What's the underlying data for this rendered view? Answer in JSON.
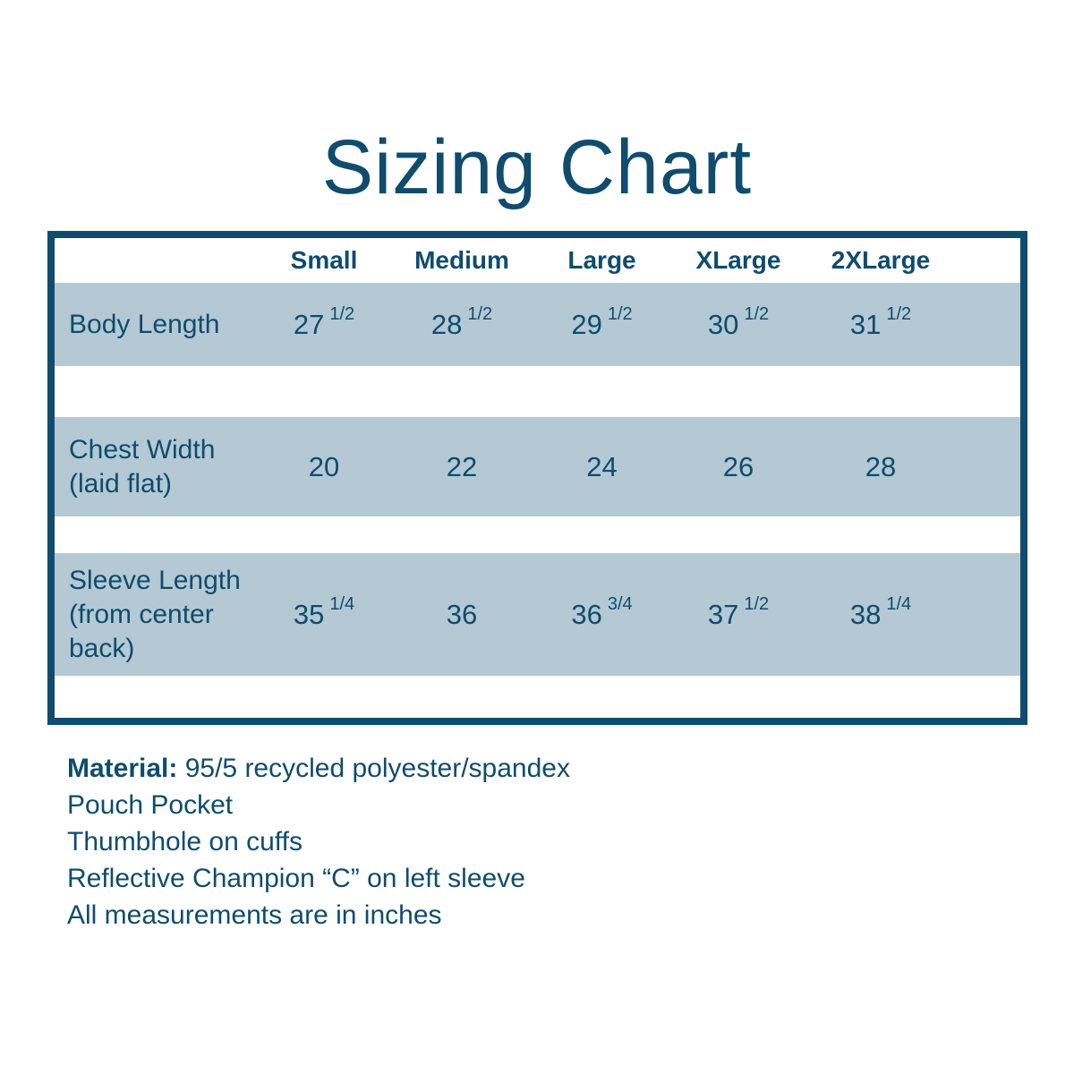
{
  "page": {
    "title": "Sizing Chart"
  },
  "colors": {
    "accent": "#0F4C6E",
    "row_band": "#B4C9D3",
    "background": "#FFFFFF"
  },
  "table": {
    "size_headers": [
      "Small",
      "Medium",
      "Large",
      "XLarge",
      "2XLarge"
    ],
    "rows": [
      {
        "label_lines": [
          "Body Length"
        ],
        "values": [
          {
            "whole": "27",
            "frac": "1/2"
          },
          {
            "whole": "28",
            "frac": "1/2"
          },
          {
            "whole": "29",
            "frac": "1/2"
          },
          {
            "whole": "30",
            "frac": "1/2"
          },
          {
            "whole": "31",
            "frac": "1/2"
          }
        ]
      },
      {
        "label_lines": [
          "Chest Width",
          "(laid flat)"
        ],
        "values": [
          {
            "whole": "20",
            "frac": ""
          },
          {
            "whole": "22",
            "frac": ""
          },
          {
            "whole": "24",
            "frac": ""
          },
          {
            "whole": "26",
            "frac": ""
          },
          {
            "whole": "28",
            "frac": ""
          }
        ]
      },
      {
        "label_lines": [
          "Sleeve Length",
          "(from center",
          "back)"
        ],
        "values": [
          {
            "whole": "35",
            "frac": "1/4"
          },
          {
            "whole": "36",
            "frac": ""
          },
          {
            "whole": "36",
            "frac": "3/4"
          },
          {
            "whole": "37",
            "frac": "1/2"
          },
          {
            "whole": "38",
            "frac": "1/4"
          }
        ]
      }
    ]
  },
  "notes": {
    "material_label": "Material:",
    "material_value": "95/5 recycled polyester/spandex",
    "lines": [
      "Pouch Pocket",
      "Thumbhole on cuffs",
      "Reflective Champion “C” on left sleeve",
      "All measurements are in inches"
    ]
  }
}
